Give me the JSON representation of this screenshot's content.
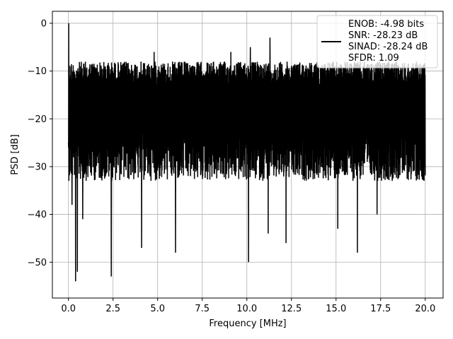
{
  "chart_data": {
    "type": "line",
    "title": "",
    "xlabel": "Frequency [MHz]",
    "ylabel": "PSD [dB]",
    "xlim": [
      -0.9,
      21.0
    ],
    "ylim": [
      -57.5,
      2.5
    ],
    "x_ticks": [
      0.0,
      2.5,
      5.0,
      7.5,
      10.0,
      12.5,
      15.0,
      17.5,
      20.0
    ],
    "x_tick_labels": [
      "0.0",
      "2.5",
      "5.0",
      "7.5",
      "10.0",
      "12.5",
      "15.0",
      "17.5",
      "20.0"
    ],
    "y_ticks": [
      0,
      -10,
      -20,
      -30,
      -40,
      -50
    ],
    "y_tick_labels": [
      "0",
      "−10",
      "−20",
      "−30",
      "−40",
      "−50"
    ],
    "grid": true,
    "legend_position": "top-right",
    "series": [
      {
        "color": "#000000",
        "x_range": [
          0.0,
          20.0
        ],
        "typical_top": -10,
        "typical_bottom": -31,
        "peak": {
          "x": 0.02,
          "y": 0
        },
        "dips": [
          {
            "x": 0.2,
            "y": -38
          },
          {
            "x": 0.4,
            "y": -54
          },
          {
            "x": 0.5,
            "y": -52
          },
          {
            "x": 0.8,
            "y": -41
          },
          {
            "x": 2.4,
            "y": -53
          },
          {
            "x": 4.1,
            "y": -47
          },
          {
            "x": 6.0,
            "y": -48
          },
          {
            "x": 10.1,
            "y": -50
          },
          {
            "x": 10.2,
            "y": -54
          },
          {
            "x": 11.2,
            "y": -44
          },
          {
            "x": 12.2,
            "y": -46
          },
          {
            "x": 15.1,
            "y": -43
          },
          {
            "x": 16.2,
            "y": -48
          },
          {
            "x": 17.3,
            "y": -40
          }
        ],
        "peaks": [
          {
            "x": 11.3,
            "y": -3
          },
          {
            "x": 10.2,
            "y": -5
          },
          {
            "x": 9.1,
            "y": -6
          },
          {
            "x": 4.8,
            "y": -6
          }
        ]
      }
    ]
  },
  "legend": {
    "lines": [
      "ENOB: -4.98 bits",
      "SNR: -28.23 dB",
      "SINAD: -28.24 dB",
      "SFDR: 1.09"
    ]
  }
}
